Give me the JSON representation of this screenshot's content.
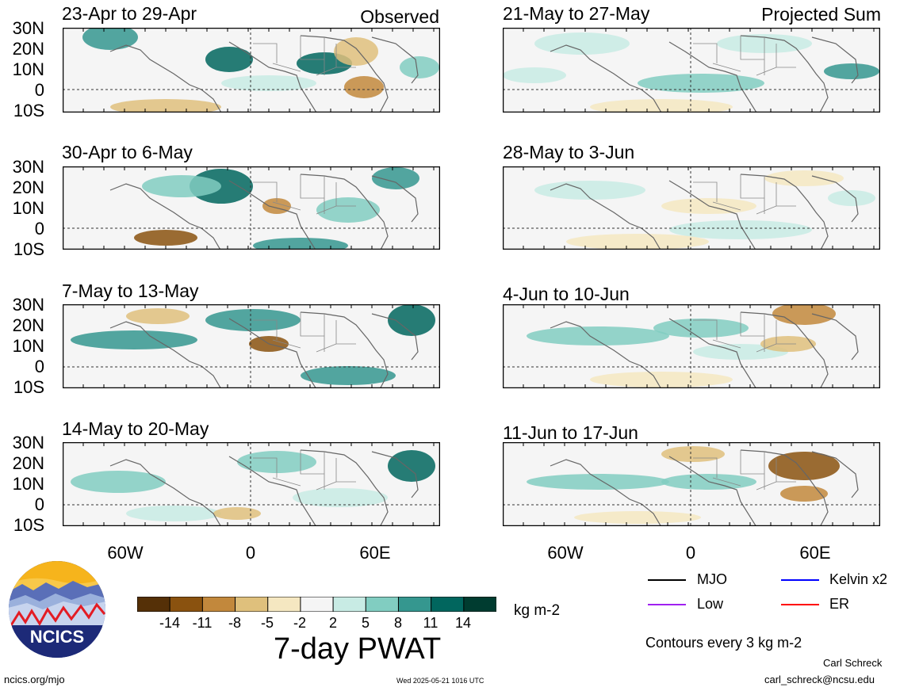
{
  "panels": [
    {
      "title": "23-Apr to 29-Apr",
      "tag": "Observed"
    },
    {
      "title": "21-May to 27-May",
      "tag": "Projected Sum"
    },
    {
      "title": "30-Apr to 6-May",
      "tag": ""
    },
    {
      "title": "28-May to 3-Jun",
      "tag": ""
    },
    {
      "title": "7-May to 13-May",
      "tag": ""
    },
    {
      "title": "4-Jun to 10-Jun",
      "tag": ""
    },
    {
      "title": "14-May to 20-May",
      "tag": ""
    },
    {
      "title": "11-Jun to 17-Jun",
      "tag": ""
    }
  ],
  "lat_labels": [
    "30N",
    "20N",
    "10N",
    "0",
    "10S"
  ],
  "lon_labels": [
    "60W",
    "0",
    "60E"
  ],
  "colorbar": {
    "colors": [
      "#553007",
      "#8a520f",
      "#c2883c",
      "#dfc07c",
      "#f5e7c1",
      "#f5f5f5",
      "#c8ebe4",
      "#81cdc1",
      "#35978f",
      "#01665e",
      "#003c30"
    ],
    "ticks": [
      "-14",
      "-11",
      "-8",
      "-5",
      "-2",
      "2",
      "5",
      "8",
      "11",
      "14"
    ],
    "unit": "kg m-2",
    "title": "7-day PWAT"
  },
  "legend": [
    {
      "label": "MJO",
      "color": "#000000"
    },
    {
      "label": "Kelvin x2",
      "color": "#0000ff"
    },
    {
      "label": "Low",
      "color": "#a020f0"
    },
    {
      "label": "ER",
      "color": "#ff0000"
    }
  ],
  "contour_note": "Contours every 3 kg m-2",
  "logo_text": "NCICS",
  "footer": {
    "left": "ncics.org/mjo",
    "center": "Wed 2025-05-21 1016 UTC",
    "author": "Carl Schreck",
    "email": "carl_schreck@ncsu.edu"
  }
}
